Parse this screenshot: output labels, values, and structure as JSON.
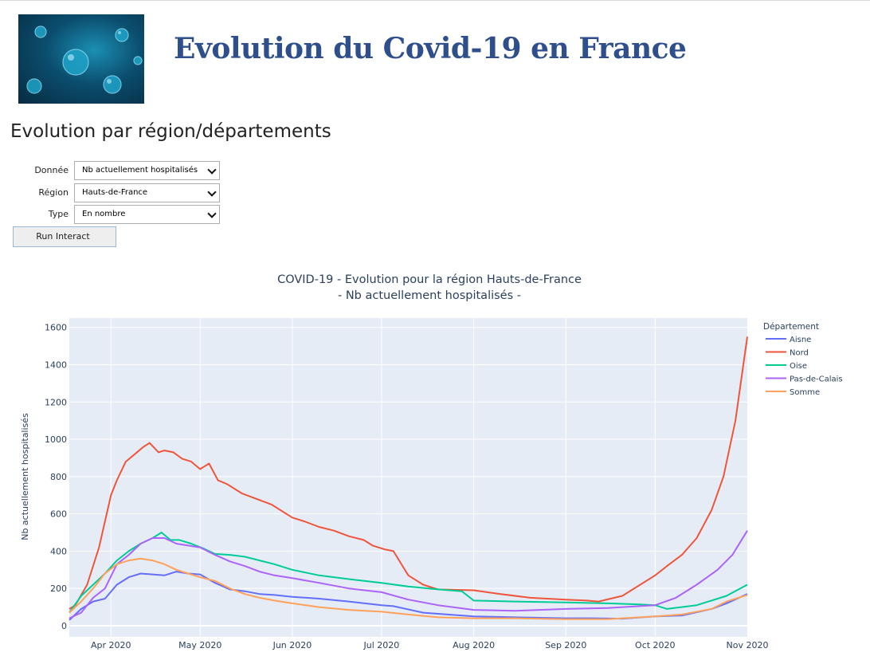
{
  "header": {
    "title": "Evolution du Covid-19 en France"
  },
  "section": {
    "title": "Evolution par région/départements"
  },
  "controls": {
    "donnee": {
      "label": "Donnée",
      "value": "Nb actuellement hospitalisés"
    },
    "region": {
      "label": "Région",
      "value": "Hauts-de-France"
    },
    "type": {
      "label": "Type",
      "value": "En nombre"
    },
    "run_label": "Run Interact"
  },
  "colors": {
    "title": "#2e4f8c",
    "plot_bg": "#e5ecf6",
    "Aisne": "#636efa",
    "Nord": "#ef553b",
    "Oise": "#00cc96",
    "Pas-de-Calais": "#ab63fa",
    "Somme": "#ffa15a"
  },
  "chart_data": {
    "type": "line",
    "title": "COVID-19 - Evolution pour la région Hauts-de-France",
    "subtitle": "- Nb actuellement hospitalisés -",
    "ylabel": "Nb actuellement hospitalisés",
    "xlabel": "",
    "xlim": [
      "2020-03-18",
      "2020-11-01"
    ],
    "ylim": [
      -60,
      1650
    ],
    "yticks": [
      0,
      200,
      400,
      600,
      800,
      1000,
      1200,
      1400,
      1600
    ],
    "xticks": [
      {
        "date": "2020-04-01",
        "label": "Apr 2020"
      },
      {
        "date": "2020-05-01",
        "label": "May 2020"
      },
      {
        "date": "2020-06-01",
        "label": "Jun 2020"
      },
      {
        "date": "2020-07-01",
        "label": "Jul 2020"
      },
      {
        "date": "2020-08-01",
        "label": "Aug 2020"
      },
      {
        "date": "2020-09-01",
        "label": "Sep 2020"
      },
      {
        "date": "2020-10-01",
        "label": "Oct 2020"
      },
      {
        "date": "2020-11-01",
        "label": "Nov 2020"
      }
    ],
    "grid": true,
    "legend": {
      "title": "Département",
      "placement": "top-right"
    },
    "series": [
      {
        "name": "Aisne",
        "x": [
          "2020-03-18",
          "2020-03-22",
          "2020-03-26",
          "2020-03-30",
          "2020-04-03",
          "2020-04-07",
          "2020-04-11",
          "2020-04-15",
          "2020-04-19",
          "2020-04-23",
          "2020-04-27",
          "2020-05-01",
          "2020-05-06",
          "2020-05-11",
          "2020-05-16",
          "2020-05-21",
          "2020-05-26",
          "2020-06-01",
          "2020-06-10",
          "2020-06-20",
          "2020-07-01",
          "2020-07-05",
          "2020-07-15",
          "2020-08-01",
          "2020-08-15",
          "2020-09-01",
          "2020-09-10",
          "2020-09-20",
          "2020-10-01",
          "2020-10-10",
          "2020-10-20",
          "2020-10-25",
          "2020-11-01"
        ],
        "y": [
          30,
          90,
          130,
          145,
          220,
          260,
          280,
          275,
          270,
          290,
          280,
          275,
          230,
          195,
          185,
          170,
          165,
          155,
          145,
          130,
          110,
          105,
          70,
          50,
          45,
          40,
          40,
          38,
          50,
          55,
          90,
          120,
          170
        ]
      },
      {
        "name": "Nord",
        "x": [
          "2020-03-18",
          "2020-03-20",
          "2020-03-24",
          "2020-03-28",
          "2020-04-01",
          "2020-04-03",
          "2020-04-06",
          "2020-04-09",
          "2020-04-12",
          "2020-04-14",
          "2020-04-17",
          "2020-04-19",
          "2020-04-22",
          "2020-04-25",
          "2020-04-28",
          "2020-05-01",
          "2020-05-04",
          "2020-05-07",
          "2020-05-10",
          "2020-05-15",
          "2020-05-20",
          "2020-05-25",
          "2020-06-01",
          "2020-06-05",
          "2020-06-10",
          "2020-06-15",
          "2020-06-20",
          "2020-06-25",
          "2020-06-28",
          "2020-07-02",
          "2020-07-05",
          "2020-07-10",
          "2020-07-15",
          "2020-07-20",
          "2020-08-01",
          "2020-08-10",
          "2020-08-20",
          "2020-09-01",
          "2020-09-08",
          "2020-09-12",
          "2020-09-20",
          "2020-10-01",
          "2020-10-05",
          "2020-10-10",
          "2020-10-15",
          "2020-10-20",
          "2020-10-24",
          "2020-10-28",
          "2020-11-01"
        ],
        "y": [
          90,
          110,
          220,
          420,
          700,
          780,
          880,
          920,
          960,
          980,
          930,
          940,
          930,
          895,
          880,
          840,
          870,
          780,
          760,
          710,
          680,
          650,
          580,
          560,
          530,
          510,
          480,
          460,
          430,
          410,
          400,
          270,
          220,
          195,
          190,
          170,
          150,
          140,
          135,
          130,
          160,
          270,
          320,
          380,
          470,
          620,
          800,
          1100,
          1550
        ]
      },
      {
        "name": "Oise",
        "x": [
          "2020-03-18",
          "2020-03-22",
          "2020-03-26",
          "2020-03-30",
          "2020-04-03",
          "2020-04-07",
          "2020-04-11",
          "2020-04-15",
          "2020-04-18",
          "2020-04-21",
          "2020-04-24",
          "2020-04-28",
          "2020-05-02",
          "2020-05-06",
          "2020-05-11",
          "2020-05-16",
          "2020-05-21",
          "2020-05-26",
          "2020-06-01",
          "2020-06-10",
          "2020-06-20",
          "2020-07-01",
          "2020-07-10",
          "2020-07-20",
          "2020-07-28",
          "2020-08-01",
          "2020-08-15",
          "2020-09-01",
          "2020-09-15",
          "2020-09-25",
          "2020-10-01",
          "2020-10-05",
          "2020-10-15",
          "2020-10-25",
          "2020-11-01"
        ],
        "y": [
          70,
          160,
          220,
          280,
          350,
          400,
          440,
          470,
          500,
          460,
          460,
          440,
          415,
          385,
          380,
          370,
          350,
          330,
          300,
          270,
          250,
          230,
          210,
          195,
          185,
          135,
          130,
          125,
          120,
          115,
          110,
          90,
          110,
          160,
          220
        ]
      },
      {
        "name": "Pas-de-Calais",
        "x": [
          "2020-03-18",
          "2020-03-22",
          "2020-03-26",
          "2020-03-30",
          "2020-04-03",
          "2020-04-07",
          "2020-04-11",
          "2020-04-15",
          "2020-04-19",
          "2020-04-23",
          "2020-04-27",
          "2020-05-01",
          "2020-05-06",
          "2020-05-11",
          "2020-05-16",
          "2020-05-21",
          "2020-05-26",
          "2020-06-01",
          "2020-06-10",
          "2020-06-20",
          "2020-07-01",
          "2020-07-10",
          "2020-07-20",
          "2020-08-01",
          "2020-08-15",
          "2020-09-01",
          "2020-09-15",
          "2020-10-01",
          "2020-10-08",
          "2020-10-15",
          "2020-10-22",
          "2020-10-27",
          "2020-11-01"
        ],
        "y": [
          40,
          70,
          150,
          200,
          330,
          380,
          440,
          470,
          470,
          440,
          430,
          420,
          380,
          345,
          320,
          290,
          270,
          255,
          230,
          200,
          180,
          140,
          110,
          85,
          80,
          90,
          95,
          110,
          150,
          220,
          300,
          380,
          510
        ]
      },
      {
        "name": "Somme",
        "x": [
          "2020-03-18",
          "2020-03-22",
          "2020-03-26",
          "2020-03-30",
          "2020-04-03",
          "2020-04-07",
          "2020-04-11",
          "2020-04-15",
          "2020-04-19",
          "2020-04-23",
          "2020-04-27",
          "2020-05-01",
          "2020-05-06",
          "2020-05-11",
          "2020-05-16",
          "2020-05-21",
          "2020-05-26",
          "2020-06-01",
          "2020-06-10",
          "2020-06-20",
          "2020-07-01",
          "2020-07-10",
          "2020-07-20",
          "2020-08-01",
          "2020-08-15",
          "2020-09-01",
          "2020-09-15",
          "2020-10-01",
          "2020-10-10",
          "2020-10-20",
          "2020-10-25",
          "2020-11-01"
        ],
        "y": [
          70,
          130,
          200,
          280,
          330,
          350,
          360,
          350,
          330,
          300,
          280,
          260,
          240,
          200,
          170,
          150,
          135,
          120,
          100,
          85,
          75,
          60,
          45,
          40,
          40,
          35,
          35,
          50,
          60,
          90,
          130,
          165
        ]
      }
    ]
  }
}
